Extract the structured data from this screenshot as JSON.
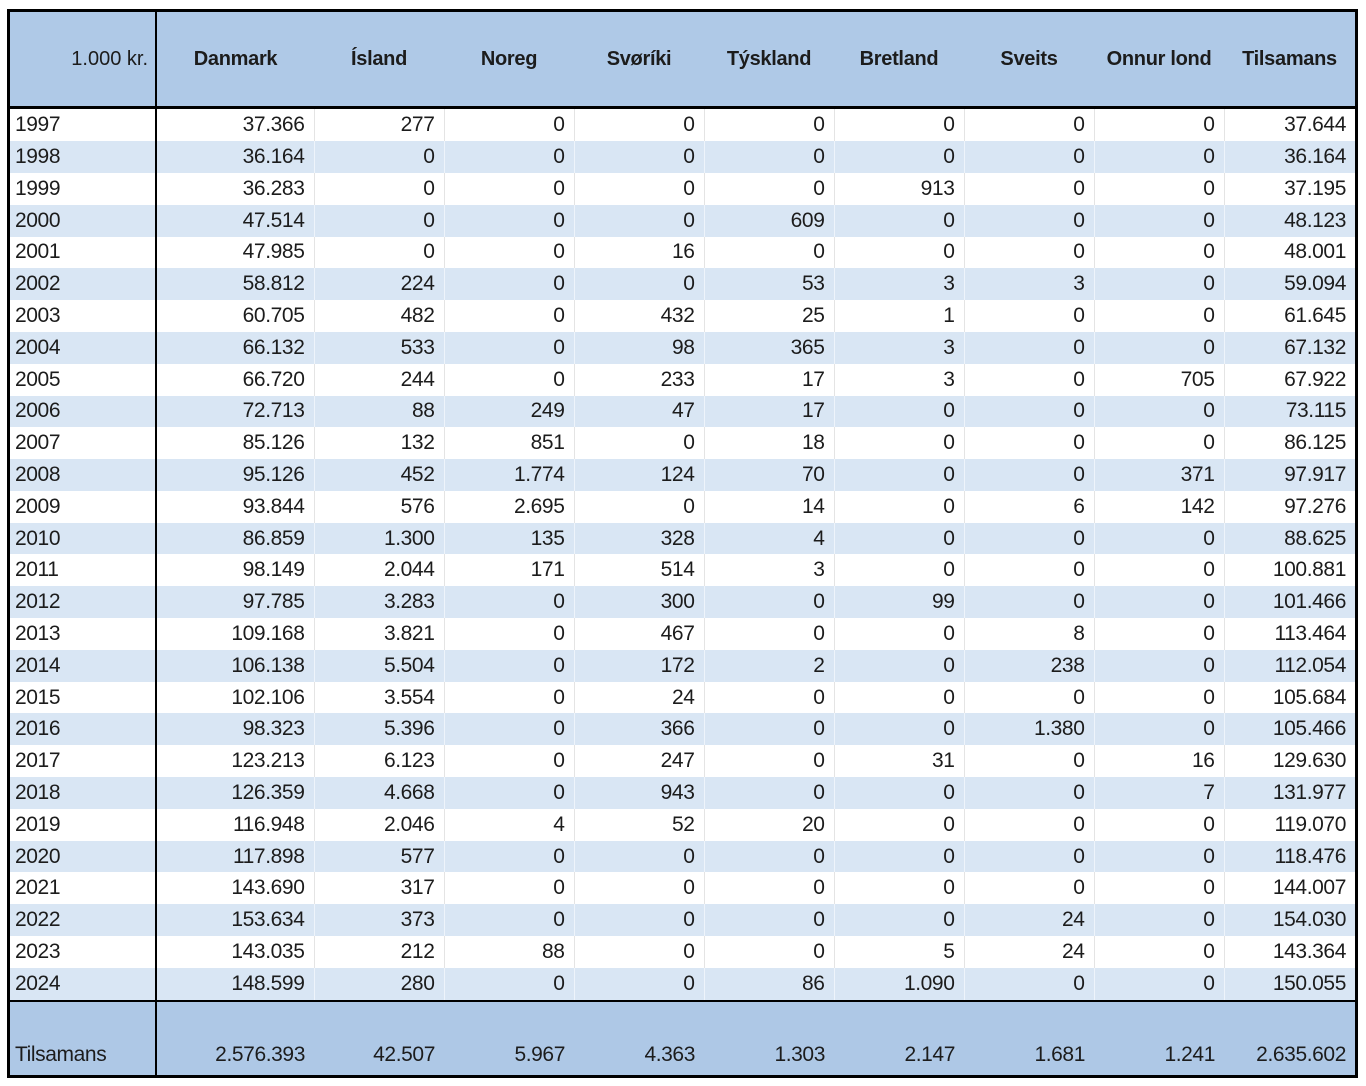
{
  "colors": {
    "header_bg": "#afc9e7",
    "band_row_bg": "#d9e6f4",
    "plain_row_bg": "#ffffff",
    "total_row_bg": "#aec8e6",
    "border": "#000000",
    "text": "#1c1c1c"
  },
  "chart_data": {
    "type": "table",
    "unit_label": "1.000 kr.",
    "columns": [
      "Danmark",
      "Ísland",
      "Noreg",
      "Svøríki",
      "Týskland",
      "Bretland",
      "Sveits",
      "Onnur lond",
      "Tilsamans"
    ],
    "years": [
      "1997",
      "1998",
      "1999",
      "2000",
      "2001",
      "2002",
      "2003",
      "2004",
      "2005",
      "2006",
      "2007",
      "2008",
      "2009",
      "2010",
      "2011",
      "2012",
      "2013",
      "2014",
      "2015",
      "2016",
      "2017",
      "2018",
      "2019",
      "2020",
      "2021",
      "2022",
      "2023",
      "2024"
    ],
    "rows": [
      [
        37366,
        277,
        0,
        0,
        0,
        0,
        0,
        0,
        37644
      ],
      [
        36164,
        0,
        0,
        0,
        0,
        0,
        0,
        0,
        36164
      ],
      [
        36283,
        0,
        0,
        0,
        0,
        913,
        0,
        0,
        37195
      ],
      [
        47514,
        0,
        0,
        0,
        609,
        0,
        0,
        0,
        48123
      ],
      [
        47985,
        0,
        0,
        16,
        0,
        0,
        0,
        0,
        48001
      ],
      [
        58812,
        224,
        0,
        0,
        53,
        3,
        3,
        0,
        59094
      ],
      [
        60705,
        482,
        0,
        432,
        25,
        1,
        0,
        0,
        61645
      ],
      [
        66132,
        533,
        0,
        98,
        365,
        3,
        0,
        0,
        67132
      ],
      [
        66720,
        244,
        0,
        233,
        17,
        3,
        0,
        705,
        67922
      ],
      [
        72713,
        88,
        249,
        47,
        17,
        0,
        0,
        0,
        73115
      ],
      [
        85126,
        132,
        851,
        0,
        18,
        0,
        0,
        0,
        86125
      ],
      [
        95126,
        452,
        1774,
        124,
        70,
        0,
        0,
        371,
        97917
      ],
      [
        93844,
        576,
        2695,
        0,
        14,
        0,
        6,
        142,
        97276
      ],
      [
        86859,
        1300,
        135,
        328,
        4,
        0,
        0,
        0,
        88625
      ],
      [
        98149,
        2044,
        171,
        514,
        3,
        0,
        0,
        0,
        100881
      ],
      [
        97785,
        3283,
        0,
        300,
        0,
        99,
        0,
        0,
        101466
      ],
      [
        109168,
        3821,
        0,
        467,
        0,
        0,
        8,
        0,
        113464
      ],
      [
        106138,
        5504,
        0,
        172,
        2,
        0,
        238,
        0,
        112054
      ],
      [
        102106,
        3554,
        0,
        24,
        0,
        0,
        0,
        0,
        105684
      ],
      [
        98323,
        5396,
        0,
        366,
        0,
        0,
        1380,
        0,
        105466
      ],
      [
        123213,
        6123,
        0,
        247,
        0,
        31,
        0,
        16,
        129630
      ],
      [
        126359,
        4668,
        0,
        943,
        0,
        0,
        0,
        7,
        131977
      ],
      [
        116948,
        2046,
        4,
        52,
        20,
        0,
        0,
        0,
        119070
      ],
      [
        117898,
        577,
        0,
        0,
        0,
        0,
        0,
        0,
        118476
      ],
      [
        143690,
        317,
        0,
        0,
        0,
        0,
        0,
        0,
        144007
      ],
      [
        153634,
        373,
        0,
        0,
        0,
        0,
        24,
        0,
        154030
      ],
      [
        143035,
        212,
        88,
        0,
        0,
        5,
        24,
        0,
        143364
      ],
      [
        148599,
        280,
        0,
        0,
        86,
        1090,
        0,
        0,
        150055
      ]
    ],
    "total_label": "Tilsamans",
    "totals": [
      2576393,
      42507,
      5967,
      4363,
      1303,
      2147,
      1681,
      1241,
      2635602
    ],
    "number_format": "thousands separated by dot",
    "layout": "banded rows, blue header and total band, black grid frame"
  }
}
